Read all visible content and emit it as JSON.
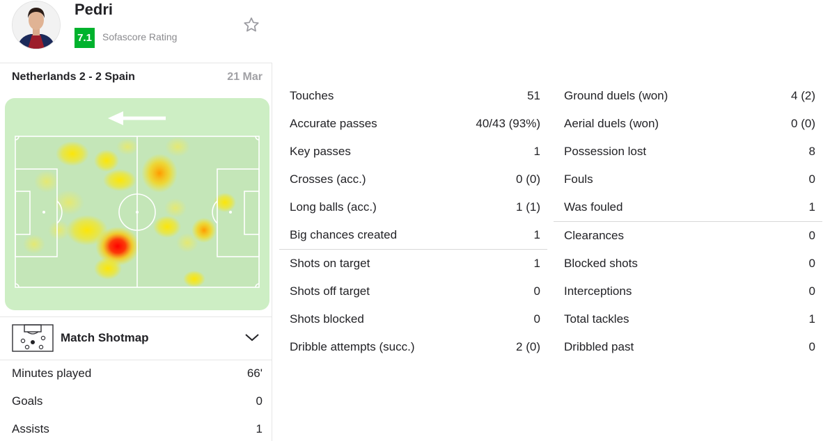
{
  "player": {
    "name": "Pedri",
    "rating": "7.1",
    "rating_label": "Sofascore Rating"
  },
  "match": {
    "title": "Netherlands 2 - 2 Spain",
    "date": "21 Mar"
  },
  "heatmap": {
    "attack_direction": "left",
    "colors": {
      "pitch": "#cdeec4",
      "field": "#c4e6b8",
      "hot": "#ff0000",
      "warm": "#ffe600"
    }
  },
  "shotmap": {
    "label": "Match Shotmap"
  },
  "summary_stats": [
    {
      "label": "Minutes played",
      "value": "66'"
    },
    {
      "label": "Goals",
      "value": "0"
    },
    {
      "label": "Assists",
      "value": "1"
    }
  ],
  "stats_column_1": {
    "group_a": [
      {
        "label": "Touches",
        "value": "51"
      },
      {
        "label": "Accurate passes",
        "value": "40/43 (93%)"
      },
      {
        "label": "Key passes",
        "value": "1"
      },
      {
        "label": "Crosses (acc.)",
        "value": "0 (0)"
      },
      {
        "label": "Long balls (acc.)",
        "value": "1 (1)"
      },
      {
        "label": "Big chances created",
        "value": "1"
      }
    ],
    "group_b": [
      {
        "label": "Shots on target",
        "value": "1"
      },
      {
        "label": "Shots off target",
        "value": "0"
      },
      {
        "label": "Shots blocked",
        "value": "0"
      },
      {
        "label": "Dribble attempts (succ.)",
        "value": "2 (0)"
      }
    ]
  },
  "stats_column_2": {
    "group_a": [
      {
        "label": "Ground duels (won)",
        "value": "4 (2)"
      },
      {
        "label": "Aerial duels (won)",
        "value": "0 (0)"
      },
      {
        "label": "Possession lost",
        "value": "8"
      },
      {
        "label": "Fouls",
        "value": "0"
      },
      {
        "label": "Was fouled",
        "value": "1"
      }
    ],
    "group_b": [
      {
        "label": "Clearances",
        "value": "0"
      },
      {
        "label": "Blocked shots",
        "value": "0"
      },
      {
        "label": "Interceptions",
        "value": "0"
      },
      {
        "label": "Total tackles",
        "value": "1"
      },
      {
        "label": "Dribbled past",
        "value": "0"
      }
    ]
  },
  "colors": {
    "rating_green": "#00b22d",
    "text": "#222226",
    "muted": "#8a8a8e"
  }
}
